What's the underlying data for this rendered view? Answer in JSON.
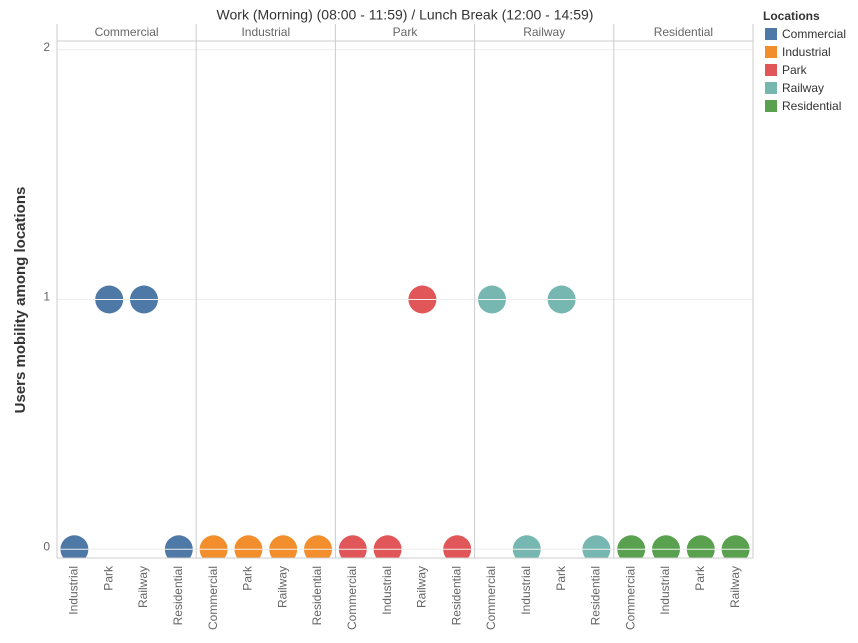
{
  "chart_data": {
    "type": "dot",
    "title": "Work (Morning) (08:00 - 11:59) / Lunch Break (12:00 - 14:59)",
    "y_label": "Users mobility among locations",
    "legend_title": "Locations",
    "ylim": [
      -0.035,
      2.035
    ],
    "yticks": [
      0,
      1,
      2
    ],
    "grid": true,
    "series": [
      {
        "name": "Commercial",
        "color": "#4e79a7",
        "categories": [
          "Industrial",
          "Park",
          "Railway",
          "Residential"
        ],
        "values": [
          0,
          1,
          1,
          0
        ]
      },
      {
        "name": "Industrial",
        "color": "#f28e2b",
        "categories": [
          "Commercial",
          "Park",
          "Railway",
          "Residential"
        ],
        "values": [
          0,
          0,
          0,
          0
        ]
      },
      {
        "name": "Park",
        "color": "#e15759",
        "categories": [
          "Commercial",
          "Industrial",
          "Railway",
          "Residential"
        ],
        "values": [
          0,
          0,
          1,
          0
        ]
      },
      {
        "name": "Railway",
        "color": "#76b7b2",
        "categories": [
          "Commercial",
          "Industrial",
          "Park",
          "Residential"
        ],
        "values": [
          1,
          0,
          1,
          0
        ]
      },
      {
        "name": "Residential",
        "color": "#59a14f",
        "categories": [
          "Commercial",
          "Industrial",
          "Park",
          "Railway"
        ],
        "values": [
          0,
          0,
          0,
          0
        ]
      }
    ]
  }
}
